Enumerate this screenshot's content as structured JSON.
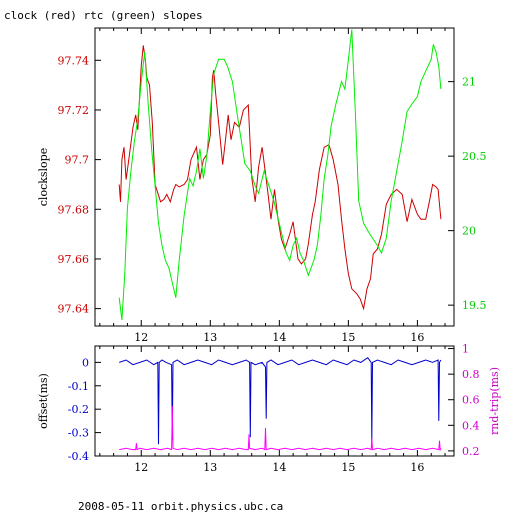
{
  "chart_data": [
    {
      "type": "line",
      "title": "clock (red) rtc (green) slopes",
      "xlabel": "",
      "ylabel": "clockslope",
      "xlim": [
        11.33,
        16.53
      ],
      "ylim_left": [
        97.633,
        97.753
      ],
      "ylim_right": [
        19.36,
        21.36
      ],
      "x_ticks": [
        "12",
        "13",
        "14",
        "15",
        "16"
      ],
      "y_ticks_left": [
        "97.64",
        "97.66",
        "97.68",
        "97.7",
        "97.72",
        "97.74"
      ],
      "y_ticks_right": [
        "19.5",
        "20",
        "20.5",
        "21"
      ],
      "grid": false,
      "series": [
        {
          "name": "clock",
          "color": "#cc0000",
          "axis": "left",
          "x": [
            11.68,
            11.7,
            11.72,
            11.75,
            11.78,
            11.82,
            11.88,
            11.92,
            11.95,
            12.0,
            12.03,
            12.06,
            12.08,
            12.12,
            12.16,
            12.2,
            12.28,
            12.33,
            12.37,
            12.42,
            12.47,
            12.5,
            12.55,
            12.62,
            12.67,
            12.72,
            12.8,
            12.85,
            12.9,
            12.95,
            13.0,
            13.03,
            13.05,
            13.08,
            13.12,
            13.18,
            13.22,
            13.26,
            13.3,
            13.35,
            13.42,
            13.48,
            13.55,
            13.6,
            13.65,
            13.7,
            13.75,
            13.82,
            13.88,
            13.93,
            13.98,
            14.03,
            14.08,
            14.15,
            14.2,
            14.27,
            14.32,
            14.38,
            14.42,
            14.48,
            14.52,
            14.58,
            14.65,
            14.72,
            14.78,
            14.85,
            14.9,
            14.95,
            15.0,
            15.05,
            15.12,
            15.17,
            15.22,
            15.27,
            15.32,
            15.36,
            15.42,
            15.48,
            15.55,
            15.62,
            15.7,
            15.78,
            15.85,
            15.92,
            16.0,
            16.05,
            16.12,
            16.18,
            16.22,
            16.27,
            16.3,
            16.34
          ],
          "y": [
            97.69,
            97.683,
            97.7,
            97.705,
            97.692,
            97.7,
            97.713,
            97.718,
            97.712,
            97.738,
            97.746,
            97.74,
            97.733,
            97.73,
            97.715,
            97.69,
            97.683,
            97.684,
            97.686,
            97.683,
            97.688,
            97.69,
            97.689,
            97.69,
            97.692,
            97.7,
            97.705,
            97.692,
            97.7,
            97.702,
            97.71,
            97.733,
            97.736,
            97.726,
            97.715,
            97.698,
            97.708,
            97.718,
            97.708,
            97.715,
            97.713,
            97.72,
            97.722,
            97.693,
            97.683,
            97.697,
            97.705,
            97.69,
            97.676,
            97.688,
            97.676,
            97.668,
            97.664,
            97.67,
            97.675,
            97.66,
            97.658,
            97.66,
            97.666,
            97.678,
            97.683,
            97.696,
            97.705,
            97.706,
            97.7,
            97.69,
            97.676,
            97.664,
            97.654,
            97.648,
            97.646,
            97.644,
            97.64,
            97.648,
            97.652,
            97.662,
            97.664,
            97.67,
            97.682,
            97.686,
            97.688,
            97.686,
            97.675,
            97.684,
            97.678,
            97.676,
            97.676,
            97.684,
            97.69,
            97.689,
            97.688,
            97.676
          ]
        },
        {
          "name": "rtc",
          "color": "#00ee00",
          "axis": "right",
          "x": [
            11.68,
            11.72,
            11.76,
            11.8,
            11.85,
            11.9,
            11.95,
            12.0,
            12.05,
            12.1,
            12.15,
            12.2,
            12.25,
            12.3,
            12.35,
            12.4,
            12.45,
            12.5,
            12.55,
            12.62,
            12.7,
            12.75,
            12.8,
            12.85,
            12.9,
            12.95,
            13.0,
            13.05,
            13.12,
            13.2,
            13.25,
            13.32,
            13.4,
            13.45,
            13.5,
            13.58,
            13.65,
            13.7,
            13.78,
            13.85,
            13.92,
            14.0,
            14.05,
            14.1,
            14.15,
            14.2,
            14.25,
            14.3,
            14.35,
            14.42,
            14.5,
            14.55,
            14.6,
            14.65,
            14.7,
            14.75,
            14.82,
            14.9,
            14.95,
            15.0,
            15.05,
            15.1,
            15.15,
            15.22,
            15.28,
            15.35,
            15.42,
            15.48,
            15.55,
            15.62,
            15.7,
            15.78,
            15.85,
            15.92,
            16.0,
            16.05,
            16.1,
            16.15,
            16.2,
            16.23,
            16.27,
            16.31,
            16.34
          ],
          "y": [
            19.55,
            19.4,
            19.7,
            20.15,
            20.4,
            20.6,
            20.75,
            21.0,
            21.2,
            20.85,
            20.55,
            20.3,
            20.05,
            19.9,
            19.8,
            19.75,
            19.65,
            19.55,
            19.8,
            20.1,
            20.35,
            20.3,
            20.4,
            20.55,
            20.35,
            20.5,
            20.8,
            21.05,
            21.15,
            21.15,
            21.1,
            21.0,
            20.75,
            20.6,
            20.45,
            20.4,
            20.3,
            20.25,
            20.4,
            20.3,
            20.2,
            20.05,
            19.95,
            19.85,
            19.8,
            19.9,
            19.95,
            19.85,
            19.8,
            19.7,
            19.8,
            19.9,
            20.1,
            20.35,
            20.5,
            20.7,
            20.85,
            21.0,
            20.95,
            21.15,
            21.35,
            20.8,
            20.2,
            20.05,
            20.0,
            19.95,
            19.9,
            19.85,
            19.95,
            20.2,
            20.4,
            20.6,
            20.8,
            20.85,
            20.9,
            21.0,
            21.05,
            21.1,
            21.15,
            21.25,
            21.2,
            21.1,
            20.95
          ]
        }
      ]
    },
    {
      "type": "line",
      "title": "",
      "xlabel": "",
      "ylabel": "offset(ms)",
      "ylabel_right": "rnd-trip(ms)",
      "xlim": [
        11.33,
        16.53
      ],
      "ylim_left": [
        -0.4,
        0.07
      ],
      "ylim_right": [
        0.16,
        1.02
      ],
      "x_ticks": [
        "12",
        "13",
        "14",
        "15",
        "16"
      ],
      "y_ticks_left": [
        "0",
        "-0.1",
        "-0.2",
        "-0.3",
        "-0.4"
      ],
      "y_ticks_right": [
        "1",
        "0.8",
        "0.6",
        "0.4",
        "0.2"
      ],
      "grid": false,
      "series": [
        {
          "name": "offset",
          "color": "#0000cc",
          "axis": "left",
          "x": [
            11.68,
            11.78,
            11.88,
            11.98,
            12.08,
            12.18,
            12.24,
            12.25,
            12.26,
            12.3,
            12.36,
            12.44,
            12.45,
            12.46,
            12.52,
            12.62,
            12.72,
            12.82,
            12.92,
            13.02,
            13.12,
            13.22,
            13.32,
            13.42,
            13.52,
            13.57,
            13.58,
            13.59,
            13.65,
            13.75,
            13.8,
            13.81,
            13.82,
            13.88,
            13.98,
            14.08,
            14.18,
            14.28,
            14.38,
            14.48,
            14.58,
            14.68,
            14.78,
            14.88,
            14.98,
            15.08,
            15.18,
            15.28,
            15.33,
            15.34,
            15.35,
            15.42,
            15.52,
            15.62,
            15.72,
            15.82,
            15.92,
            16.02,
            16.12,
            16.22,
            16.3,
            16.31,
            16.32,
            16.34
          ],
          "y": [
            0.0,
            0.01,
            -0.01,
            0.0,
            0.01,
            -0.01,
            0.0,
            -0.35,
            0.0,
            0.01,
            0.0,
            -0.01,
            -0.33,
            0.0,
            0.01,
            -0.01,
            0.0,
            0.01,
            0.0,
            -0.01,
            0.01,
            0.0,
            -0.01,
            0.0,
            0.01,
            0.0,
            -0.32,
            0.0,
            -0.01,
            0.0,
            -0.02,
            -0.24,
            0.0,
            0.01,
            -0.01,
            0.0,
            0.01,
            -0.01,
            0.0,
            0.01,
            0.0,
            -0.01,
            0.01,
            0.0,
            -0.01,
            0.01,
            0.0,
            0.02,
            0.0,
            -0.34,
            0.0,
            0.01,
            0.0,
            -0.01,
            0.01,
            0.0,
            -0.01,
            0.0,
            0.01,
            0.0,
            0.01,
            -0.25,
            0.0,
            0.01
          ]
        },
        {
          "name": "rnd-trip",
          "color": "#ff00ff",
          "axis": "right",
          "x": [
            11.68,
            11.78,
            11.88,
            11.92,
            11.93,
            11.94,
            11.98,
            12.08,
            12.18,
            12.28,
            12.38,
            12.44,
            12.45,
            12.46,
            12.52,
            12.62,
            12.72,
            12.82,
            12.92,
            13.02,
            13.12,
            13.22,
            13.32,
            13.42,
            13.52,
            13.55,
            13.56,
            13.57,
            13.65,
            13.75,
            13.79,
            13.8,
            13.81,
            13.88,
            13.98,
            14.08,
            14.18,
            14.28,
            14.38,
            14.48,
            14.58,
            14.68,
            14.78,
            14.88,
            14.98,
            15.08,
            15.18,
            15.28,
            15.33,
            15.34,
            15.35,
            15.42,
            15.52,
            15.62,
            15.72,
            15.82,
            15.92,
            16.02,
            16.12,
            16.22,
            16.31,
            16.32,
            16.33,
            16.34
          ],
          "y": [
            0.21,
            0.22,
            0.21,
            0.21,
            0.26,
            0.21,
            0.22,
            0.21,
            0.22,
            0.21,
            0.22,
            0.21,
            0.55,
            0.22,
            0.21,
            0.22,
            0.21,
            0.22,
            0.21,
            0.22,
            0.21,
            0.22,
            0.21,
            0.22,
            0.21,
            0.21,
            0.33,
            0.22,
            0.21,
            0.22,
            0.21,
            0.38,
            0.21,
            0.22,
            0.21,
            0.22,
            0.21,
            0.22,
            0.21,
            0.22,
            0.21,
            0.22,
            0.21,
            0.22,
            0.21,
            0.22,
            0.21,
            0.22,
            0.21,
            0.3,
            0.21,
            0.22,
            0.21,
            0.22,
            0.21,
            0.22,
            0.21,
            0.22,
            0.21,
            0.22,
            0.21,
            0.28,
            0.21,
            0.22
          ]
        }
      ]
    }
  ],
  "footer": "2008-05-11 orbit.physics.ubc.ca"
}
